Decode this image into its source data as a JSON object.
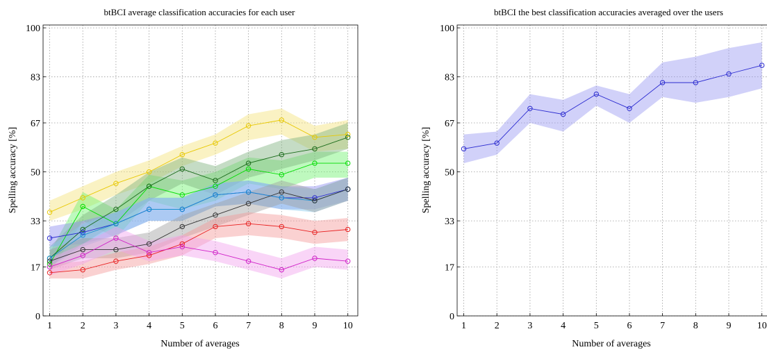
{
  "chart_data": [
    {
      "type": "line",
      "title": "btBCI average classification accuracies for each user",
      "xlabel": "Number of averages",
      "ylabel": "Spelling accuracy [%]",
      "x": [
        1,
        2,
        3,
        4,
        5,
        6,
        7,
        8,
        9,
        10
      ],
      "xlim": [
        0.8,
        10.3
      ],
      "ylim": [
        0,
        101
      ],
      "yticks": [
        0,
        17,
        33,
        50,
        67,
        83,
        100
      ],
      "xticks": [
        1,
        2,
        3,
        4,
        5,
        6,
        7,
        8,
        9,
        10
      ],
      "grid": true,
      "series": [
        {
          "color": "#e8c800",
          "band": "#f5e27a",
          "values": [
            36,
            41,
            46,
            50,
            56,
            60,
            66,
            68,
            62,
            63
          ],
          "lower": [
            33,
            37,
            42,
            46,
            52,
            56,
            61,
            63,
            57,
            58
          ],
          "upper": [
            40,
            45,
            50,
            54,
            59,
            63,
            70,
            72,
            66,
            68
          ]
        },
        {
          "color": "#00dd00",
          "band": "#6ff26f",
          "values": [
            18,
            38,
            32,
            45,
            42,
            45,
            51,
            49,
            53,
            53
          ],
          "lower": [
            15,
            33,
            27,
            40,
            37,
            40,
            46,
            44,
            48,
            48
          ],
          "upper": [
            22,
            43,
            37,
            49,
            47,
            50,
            55,
            54,
            57,
            57
          ]
        },
        {
          "color": "#1a6b1a",
          "band": "#7fb27f",
          "values": [
            20,
            30,
            37,
            45,
            51,
            47,
            53,
            56,
            58,
            62
          ],
          "lower": [
            17,
            25,
            32,
            40,
            46,
            42,
            48,
            51,
            54,
            58
          ],
          "upper": [
            24,
            35,
            42,
            50,
            55,
            52,
            57,
            61,
            63,
            67
          ]
        },
        {
          "color": "#2a2ad0",
          "band": "#8c8cf0",
          "values": [
            27,
            29,
            32,
            37,
            37,
            42,
            43,
            41,
            41,
            44
          ],
          "lower": [
            24,
            25,
            28,
            33,
            33,
            38,
            39,
            37,
            37,
            40
          ],
          "upper": [
            31,
            33,
            36,
            41,
            41,
            46,
            47,
            45,
            45,
            48
          ]
        },
        {
          "color": "#1a8fd0",
          "band": "#88c9ee",
          "values": [
            20,
            28,
            32,
            37,
            37,
            42,
            43,
            41,
            40,
            44
          ],
          "lower": [
            17,
            24,
            28,
            33,
            33,
            38,
            39,
            37,
            36,
            40
          ],
          "upper": [
            24,
            32,
            36,
            41,
            41,
            46,
            47,
            45,
            44,
            48
          ]
        },
        {
          "color": "#333333",
          "band": "#a0a0a0",
          "values": [
            19,
            23,
            23,
            25,
            31,
            35,
            39,
            43,
            40,
            44
          ],
          "lower": [
            16,
            20,
            20,
            22,
            27,
            31,
            35,
            39,
            36,
            40
          ],
          "upper": [
            23,
            27,
            27,
            29,
            35,
            39,
            43,
            47,
            44,
            48
          ]
        },
        {
          "color": "#e82020",
          "band": "#f59a9a",
          "values": [
            15,
            16,
            19,
            21,
            25,
            31,
            32,
            31,
            29,
            30
          ],
          "lower": [
            13,
            13,
            16,
            18,
            21,
            27,
            28,
            27,
            25,
            26
          ],
          "upper": [
            18,
            19,
            22,
            24,
            28,
            34,
            36,
            35,
            33,
            34
          ]
        },
        {
          "color": "#d020c8",
          "band": "#f2a2ee",
          "values": [
            17,
            21,
            27,
            22,
            24,
            22,
            19,
            16,
            20,
            19
          ],
          "lower": [
            14,
            18,
            23,
            19,
            21,
            19,
            16,
            13,
            17,
            16
          ],
          "upper": [
            20,
            25,
            31,
            26,
            28,
            26,
            23,
            20,
            24,
            23
          ]
        }
      ]
    },
    {
      "type": "line",
      "title": "btBCI the best classification accuracies averaged over the users",
      "xlabel": "Number of averages",
      "ylabel": "Spelling accuracy [%]",
      "x": [
        1,
        2,
        3,
        4,
        5,
        6,
        7,
        8,
        9,
        10
      ],
      "xlim": [
        0.8,
        10.3
      ],
      "ylim": [
        0,
        101
      ],
      "yticks": [
        0,
        17,
        33,
        50,
        67,
        83,
        100
      ],
      "xticks": [
        1,
        2,
        3,
        4,
        5,
        6,
        7,
        8,
        9,
        10
      ],
      "grid": true,
      "series": [
        {
          "color": "#2a2ad0",
          "band": "#9a9af2",
          "values": [
            58,
            60,
            72,
            70,
            77,
            72,
            81,
            81,
            84,
            87
          ],
          "lower": [
            53,
            56,
            67,
            64,
            73,
            67,
            76,
            74,
            76,
            79
          ],
          "upper": [
            63,
            64,
            77,
            75,
            80,
            77,
            88,
            90,
            93,
            95
          ]
        }
      ]
    }
  ]
}
